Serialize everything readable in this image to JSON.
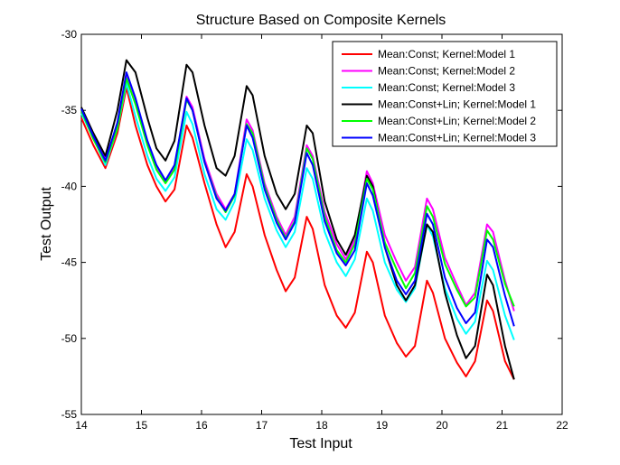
{
  "chart_data": {
    "type": "line",
    "title": "Structure Based on Composite Kernels",
    "xlabel": "Test Input",
    "ylabel": "Test Output",
    "xlim": [
      14,
      22
    ],
    "ylim": [
      -55,
      -30
    ],
    "xticks": [
      14,
      15,
      16,
      17,
      18,
      19,
      20,
      21,
      22
    ],
    "yticks": [
      -55,
      -50,
      -45,
      -40,
      -35,
      -30
    ],
    "legend_position": "top-right",
    "grid": false,
    "series": [
      {
        "name": "Mean:Const; Kernel:Model 1",
        "color": "#ff0000",
        "x": [
          14.0,
          14.2,
          14.4,
          14.6,
          14.75,
          14.9,
          15.1,
          15.25,
          15.4,
          15.55,
          15.75,
          15.85,
          16.05,
          16.25,
          16.4,
          16.55,
          16.75,
          16.85,
          17.05,
          17.25,
          17.4,
          17.55,
          17.75,
          17.85,
          18.05,
          18.25,
          18.4,
          18.55,
          18.75,
          18.85,
          19.05,
          19.25,
          19.4,
          19.55,
          19.75,
          19.85,
          20.05,
          20.25,
          20.4,
          20.55,
          20.75,
          20.85,
          21.05,
          21.2
        ],
        "values": [
          -35.5,
          -37.3,
          -38.8,
          -36.5,
          -33.5,
          -36.0,
          -38.6,
          -40.0,
          -41.0,
          -40.2,
          -36.0,
          -36.8,
          -39.8,
          -42.5,
          -44.0,
          -43.0,
          -39.2,
          -40.0,
          -43.2,
          -45.5,
          -46.9,
          -46.0,
          -42.0,
          -42.8,
          -46.5,
          -48.5,
          -49.3,
          -48.3,
          -44.3,
          -45.0,
          -48.5,
          -50.3,
          -51.2,
          -50.5,
          -46.2,
          -47.0,
          -50.0,
          -51.6,
          -52.5,
          -51.5,
          -47.5,
          -48.2,
          -51.5,
          -52.7
        ]
      },
      {
        "name": "Mean:Const; Kernel:Model 2",
        "color": "#ff00ff",
        "x": [
          14.0,
          14.2,
          14.4,
          14.6,
          14.75,
          14.9,
          15.1,
          15.25,
          15.4,
          15.55,
          15.75,
          15.85,
          16.05,
          16.25,
          16.4,
          16.55,
          16.75,
          16.85,
          17.05,
          17.25,
          17.4,
          17.55,
          17.75,
          17.85,
          18.05,
          18.25,
          18.4,
          18.55,
          18.75,
          18.85,
          19.05,
          19.25,
          19.4,
          19.55,
          19.75,
          19.85,
          20.05,
          20.25,
          20.4,
          20.55,
          20.75,
          20.85,
          21.05,
          21.2
        ],
        "values": [
          -35.0,
          -36.8,
          -38.2,
          -36.0,
          -32.8,
          -34.5,
          -37.2,
          -38.8,
          -39.7,
          -38.8,
          -34.1,
          -34.8,
          -38.2,
          -40.5,
          -41.5,
          -40.5,
          -35.6,
          -36.3,
          -39.8,
          -42.0,
          -43.2,
          -42.0,
          -37.3,
          -38.0,
          -41.7,
          -43.8,
          -44.8,
          -43.5,
          -39.0,
          -39.8,
          -43.2,
          -45.0,
          -46.2,
          -45.3,
          -40.8,
          -41.5,
          -44.7,
          -46.5,
          -47.8,
          -47.0,
          -42.5,
          -43.0,
          -46.2,
          -48.2
        ]
      },
      {
        "name": "Mean:Const; Kernel:Model 3",
        "color": "#00ffff",
        "x": [
          14.0,
          14.2,
          14.4,
          14.6,
          14.75,
          14.9,
          15.1,
          15.25,
          15.4,
          15.55,
          15.75,
          15.85,
          16.05,
          16.25,
          16.4,
          16.55,
          16.75,
          16.85,
          17.05,
          17.25,
          17.4,
          17.55,
          17.75,
          17.85,
          18.05,
          18.25,
          18.4,
          18.55,
          18.75,
          18.85,
          19.05,
          19.25,
          19.4,
          19.55,
          19.75,
          19.85,
          20.05,
          20.25,
          20.4,
          20.55,
          20.75,
          20.85,
          21.05,
          21.2
        ],
        "values": [
          -35.2,
          -36.8,
          -38.6,
          -36.2,
          -33.2,
          -35.4,
          -38.0,
          -39.5,
          -40.3,
          -39.4,
          -35.1,
          -35.9,
          -39.2,
          -41.5,
          -42.2,
          -41.0,
          -36.9,
          -37.6,
          -40.8,
          -42.9,
          -44.0,
          -43.0,
          -38.8,
          -39.5,
          -43.0,
          -45.0,
          -45.9,
          -44.8,
          -40.8,
          -41.6,
          -45.0,
          -46.8,
          -47.6,
          -46.7,
          -42.5,
          -43.3,
          -46.7,
          -48.7,
          -49.7,
          -48.9,
          -44.9,
          -45.5,
          -48.5,
          -50.1
        ]
      },
      {
        "name": "Mean:Const+Lin; Kernel:Model 1",
        "color": "#000000",
        "x": [
          14.0,
          14.2,
          14.4,
          14.6,
          14.75,
          14.9,
          15.1,
          15.25,
          15.4,
          15.55,
          15.75,
          15.85,
          16.05,
          16.25,
          16.4,
          16.55,
          16.75,
          16.85,
          17.05,
          17.25,
          17.4,
          17.55,
          17.75,
          17.85,
          18.05,
          18.25,
          18.4,
          18.55,
          18.75,
          18.85,
          19.05,
          19.25,
          19.4,
          19.55,
          19.75,
          19.85,
          20.05,
          20.25,
          20.4,
          20.55,
          20.75,
          20.85,
          21.05,
          21.2
        ],
        "values": [
          -34.8,
          -36.5,
          -38.0,
          -35.0,
          -31.7,
          -32.5,
          -35.5,
          -37.5,
          -38.3,
          -37.0,
          -32.0,
          -32.5,
          -36.0,
          -38.8,
          -39.3,
          -38.0,
          -33.4,
          -34.0,
          -38.0,
          -40.5,
          -41.5,
          -40.5,
          -36.0,
          -36.5,
          -41.0,
          -43.5,
          -44.5,
          -43.2,
          -39.3,
          -40.0,
          -44.0,
          -46.5,
          -47.5,
          -46.5,
          -42.5,
          -43.0,
          -47.0,
          -49.8,
          -51.3,
          -50.5,
          -45.8,
          -46.5,
          -50.5,
          -52.7
        ]
      },
      {
        "name": "Mean:Const+Lin; Kernel:Model 2",
        "color": "#00ff00",
        "x": [
          14.0,
          14.2,
          14.4,
          14.6,
          14.75,
          14.9,
          15.1,
          15.25,
          15.4,
          15.55,
          15.75,
          15.85,
          16.05,
          16.25,
          16.4,
          16.55,
          16.75,
          16.85,
          17.05,
          17.25,
          17.4,
          17.55,
          17.75,
          17.85,
          18.05,
          18.25,
          18.4,
          18.55,
          18.75,
          18.85,
          19.05,
          19.25,
          19.4,
          19.55,
          19.75,
          19.85,
          20.05,
          20.25,
          20.4,
          20.55,
          20.75,
          20.85,
          21.05,
          21.2
        ],
        "values": [
          -35.0,
          -36.9,
          -38.4,
          -36.2,
          -32.9,
          -34.6,
          -37.3,
          -38.9,
          -39.8,
          -38.9,
          -34.3,
          -35.0,
          -38.4,
          -40.7,
          -41.7,
          -40.6,
          -35.9,
          -36.5,
          -40.0,
          -42.2,
          -43.4,
          -42.3,
          -37.5,
          -38.2,
          -42.0,
          -44.2,
          -45.0,
          -43.8,
          -39.5,
          -40.2,
          -43.7,
          -45.5,
          -46.7,
          -45.7,
          -41.3,
          -42.0,
          -45.1,
          -46.8,
          -47.9,
          -47.3,
          -42.9,
          -43.5,
          -46.4,
          -47.9
        ]
      },
      {
        "name": "Mean:Const+Lin; Kernel:Model 3",
        "color": "#0000ff",
        "x": [
          14.0,
          14.2,
          14.4,
          14.6,
          14.75,
          14.9,
          15.1,
          15.25,
          15.4,
          15.55,
          15.75,
          15.85,
          16.05,
          16.25,
          16.4,
          16.55,
          16.75,
          16.85,
          17.05,
          17.25,
          17.4,
          17.55,
          17.75,
          17.85,
          18.05,
          18.25,
          18.4,
          18.55,
          18.75,
          18.85,
          19.05,
          19.25,
          19.4,
          19.55,
          19.75,
          19.85,
          20.05,
          20.25,
          20.4,
          20.55,
          20.75,
          20.85,
          21.05,
          21.2
        ],
        "values": [
          -34.9,
          -36.7,
          -38.3,
          -35.8,
          -32.5,
          -34.2,
          -37.0,
          -38.6,
          -39.6,
          -38.6,
          -34.2,
          -35.0,
          -38.4,
          -40.8,
          -41.6,
          -40.5,
          -36.0,
          -36.8,
          -40.2,
          -42.4,
          -43.5,
          -42.4,
          -37.8,
          -38.6,
          -42.3,
          -44.4,
          -45.2,
          -44.2,
          -39.8,
          -40.6,
          -44.0,
          -46.2,
          -47.1,
          -46.2,
          -41.8,
          -42.5,
          -46.0,
          -48.0,
          -49.0,
          -48.3,
          -43.5,
          -44.0,
          -47.2,
          -49.2
        ]
      }
    ]
  }
}
